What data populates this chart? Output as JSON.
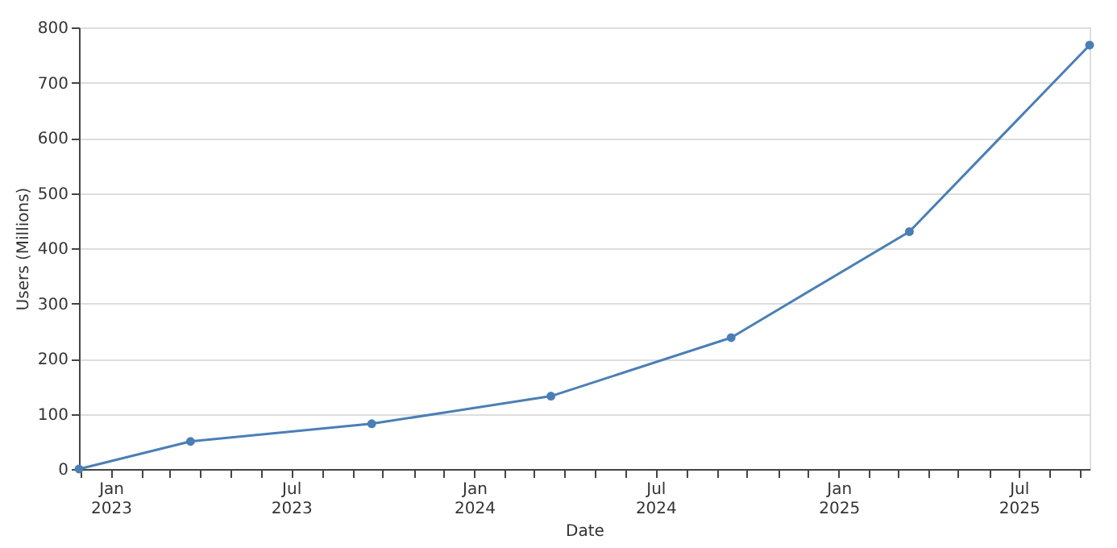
{
  "chart_data": {
    "type": "line",
    "xlabel": "Date",
    "ylabel": "Users (Millions)",
    "x": [
      "2022-11-30",
      "2023-03-22",
      "2023-09-20",
      "2024-03-18",
      "2024-09-15",
      "2025-03-13",
      "2025-09-10"
    ],
    "series": [
      {
        "color": "#4a7fb5",
        "values": [
          0,
          50,
          82,
          132,
          238,
          430,
          768
        ]
      }
    ],
    "xlim": [
      "2022-11-30",
      "2025-09-10"
    ],
    "xticks": [
      {
        "value": "2022-12-01",
        "label": null
      },
      {
        "value": "2023-01-01",
        "label": "Jan 2023"
      },
      {
        "value": "2023-02-01",
        "label": null
      },
      {
        "value": "2023-03-01",
        "label": null
      },
      {
        "value": "2023-04-01",
        "label": null
      },
      {
        "value": "2023-05-01",
        "label": null
      },
      {
        "value": "2023-06-01",
        "label": null
      },
      {
        "value": "2023-07-01",
        "label": "Jul 2023"
      },
      {
        "value": "2023-08-01",
        "label": null
      },
      {
        "value": "2023-09-01",
        "label": null
      },
      {
        "value": "2023-10-01",
        "label": null
      },
      {
        "value": "2023-11-01",
        "label": null
      },
      {
        "value": "2023-12-01",
        "label": null
      },
      {
        "value": "2024-01-01",
        "label": "Jan 2024"
      },
      {
        "value": "2024-02-01",
        "label": null
      },
      {
        "value": "2024-03-01",
        "label": null
      },
      {
        "value": "2024-04-01",
        "label": null
      },
      {
        "value": "2024-05-01",
        "label": null
      },
      {
        "value": "2024-06-01",
        "label": null
      },
      {
        "value": "2024-07-01",
        "label": "Jul 2024"
      },
      {
        "value": "2024-08-01",
        "label": null
      },
      {
        "value": "2024-09-01",
        "label": null
      },
      {
        "value": "2024-10-01",
        "label": null
      },
      {
        "value": "2024-11-01",
        "label": null
      },
      {
        "value": "2024-12-01",
        "label": null
      },
      {
        "value": "2025-01-01",
        "label": "Jan 2025"
      },
      {
        "value": "2025-02-01",
        "label": null
      },
      {
        "value": "2025-03-01",
        "label": null
      },
      {
        "value": "2025-04-01",
        "label": null
      },
      {
        "value": "2025-05-01",
        "label": null
      },
      {
        "value": "2025-06-01",
        "label": null
      },
      {
        "value": "2025-07-01",
        "label": "Jul 2025"
      },
      {
        "value": "2025-08-01",
        "label": null
      },
      {
        "value": "2025-09-01",
        "label": null
      }
    ],
    "ylim": [
      0,
      800
    ],
    "yticks": [
      0,
      100,
      200,
      300,
      400,
      500,
      600,
      700,
      800
    ],
    "grid": "y",
    "marker": "circle",
    "line_style": "solid"
  }
}
